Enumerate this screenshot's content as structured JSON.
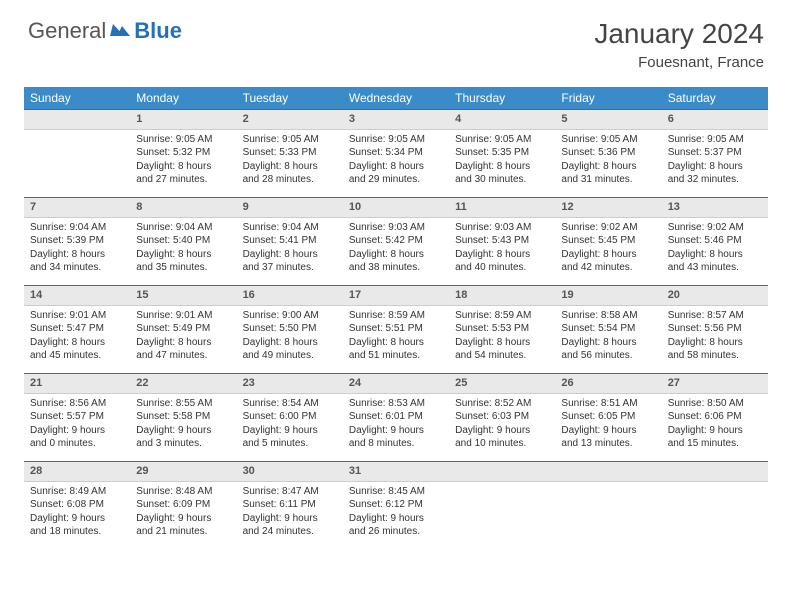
{
  "logo": {
    "general": "General",
    "blue": "Blue"
  },
  "title": "January 2024",
  "location": "Fouesnant, France",
  "colors": {
    "header_bg": "#3b8bc9",
    "header_text": "#ffffff",
    "daynum_bg": "#e9e9e9",
    "daynum_border_top": "#2571b8",
    "text": "#333333",
    "logo_blue": "#2571b8"
  },
  "dayHeaders": [
    "Sunday",
    "Monday",
    "Tuesday",
    "Wednesday",
    "Thursday",
    "Friday",
    "Saturday"
  ],
  "weeks": [
    [
      {
        "n": "",
        "lines": [
          "",
          "",
          "",
          ""
        ]
      },
      {
        "n": "1",
        "lines": [
          "Sunrise: 9:05 AM",
          "Sunset: 5:32 PM",
          "Daylight: 8 hours",
          "and 27 minutes."
        ]
      },
      {
        "n": "2",
        "lines": [
          "Sunrise: 9:05 AM",
          "Sunset: 5:33 PM",
          "Daylight: 8 hours",
          "and 28 minutes."
        ]
      },
      {
        "n": "3",
        "lines": [
          "Sunrise: 9:05 AM",
          "Sunset: 5:34 PM",
          "Daylight: 8 hours",
          "and 29 minutes."
        ]
      },
      {
        "n": "4",
        "lines": [
          "Sunrise: 9:05 AM",
          "Sunset: 5:35 PM",
          "Daylight: 8 hours",
          "and 30 minutes."
        ]
      },
      {
        "n": "5",
        "lines": [
          "Sunrise: 9:05 AM",
          "Sunset: 5:36 PM",
          "Daylight: 8 hours",
          "and 31 minutes."
        ]
      },
      {
        "n": "6",
        "lines": [
          "Sunrise: 9:05 AM",
          "Sunset: 5:37 PM",
          "Daylight: 8 hours",
          "and 32 minutes."
        ]
      }
    ],
    [
      {
        "n": "7",
        "lines": [
          "Sunrise: 9:04 AM",
          "Sunset: 5:39 PM",
          "Daylight: 8 hours",
          "and 34 minutes."
        ]
      },
      {
        "n": "8",
        "lines": [
          "Sunrise: 9:04 AM",
          "Sunset: 5:40 PM",
          "Daylight: 8 hours",
          "and 35 minutes."
        ]
      },
      {
        "n": "9",
        "lines": [
          "Sunrise: 9:04 AM",
          "Sunset: 5:41 PM",
          "Daylight: 8 hours",
          "and 37 minutes."
        ]
      },
      {
        "n": "10",
        "lines": [
          "Sunrise: 9:03 AM",
          "Sunset: 5:42 PM",
          "Daylight: 8 hours",
          "and 38 minutes."
        ]
      },
      {
        "n": "11",
        "lines": [
          "Sunrise: 9:03 AM",
          "Sunset: 5:43 PM",
          "Daylight: 8 hours",
          "and 40 minutes."
        ]
      },
      {
        "n": "12",
        "lines": [
          "Sunrise: 9:02 AM",
          "Sunset: 5:45 PM",
          "Daylight: 8 hours",
          "and 42 minutes."
        ]
      },
      {
        "n": "13",
        "lines": [
          "Sunrise: 9:02 AM",
          "Sunset: 5:46 PM",
          "Daylight: 8 hours",
          "and 43 minutes."
        ]
      }
    ],
    [
      {
        "n": "14",
        "lines": [
          "Sunrise: 9:01 AM",
          "Sunset: 5:47 PM",
          "Daylight: 8 hours",
          "and 45 minutes."
        ]
      },
      {
        "n": "15",
        "lines": [
          "Sunrise: 9:01 AM",
          "Sunset: 5:49 PM",
          "Daylight: 8 hours",
          "and 47 minutes."
        ]
      },
      {
        "n": "16",
        "lines": [
          "Sunrise: 9:00 AM",
          "Sunset: 5:50 PM",
          "Daylight: 8 hours",
          "and 49 minutes."
        ]
      },
      {
        "n": "17",
        "lines": [
          "Sunrise: 8:59 AM",
          "Sunset: 5:51 PM",
          "Daylight: 8 hours",
          "and 51 minutes."
        ]
      },
      {
        "n": "18",
        "lines": [
          "Sunrise: 8:59 AM",
          "Sunset: 5:53 PM",
          "Daylight: 8 hours",
          "and 54 minutes."
        ]
      },
      {
        "n": "19",
        "lines": [
          "Sunrise: 8:58 AM",
          "Sunset: 5:54 PM",
          "Daylight: 8 hours",
          "and 56 minutes."
        ]
      },
      {
        "n": "20",
        "lines": [
          "Sunrise: 8:57 AM",
          "Sunset: 5:56 PM",
          "Daylight: 8 hours",
          "and 58 minutes."
        ]
      }
    ],
    [
      {
        "n": "21",
        "lines": [
          "Sunrise: 8:56 AM",
          "Sunset: 5:57 PM",
          "Daylight: 9 hours",
          "and 0 minutes."
        ]
      },
      {
        "n": "22",
        "lines": [
          "Sunrise: 8:55 AM",
          "Sunset: 5:58 PM",
          "Daylight: 9 hours",
          "and 3 minutes."
        ]
      },
      {
        "n": "23",
        "lines": [
          "Sunrise: 8:54 AM",
          "Sunset: 6:00 PM",
          "Daylight: 9 hours",
          "and 5 minutes."
        ]
      },
      {
        "n": "24",
        "lines": [
          "Sunrise: 8:53 AM",
          "Sunset: 6:01 PM",
          "Daylight: 9 hours",
          "and 8 minutes."
        ]
      },
      {
        "n": "25",
        "lines": [
          "Sunrise: 8:52 AM",
          "Sunset: 6:03 PM",
          "Daylight: 9 hours",
          "and 10 minutes."
        ]
      },
      {
        "n": "26",
        "lines": [
          "Sunrise: 8:51 AM",
          "Sunset: 6:05 PM",
          "Daylight: 9 hours",
          "and 13 minutes."
        ]
      },
      {
        "n": "27",
        "lines": [
          "Sunrise: 8:50 AM",
          "Sunset: 6:06 PM",
          "Daylight: 9 hours",
          "and 15 minutes."
        ]
      }
    ],
    [
      {
        "n": "28",
        "lines": [
          "Sunrise: 8:49 AM",
          "Sunset: 6:08 PM",
          "Daylight: 9 hours",
          "and 18 minutes."
        ]
      },
      {
        "n": "29",
        "lines": [
          "Sunrise: 8:48 AM",
          "Sunset: 6:09 PM",
          "Daylight: 9 hours",
          "and 21 minutes."
        ]
      },
      {
        "n": "30",
        "lines": [
          "Sunrise: 8:47 AM",
          "Sunset: 6:11 PM",
          "Daylight: 9 hours",
          "and 24 minutes."
        ]
      },
      {
        "n": "31",
        "lines": [
          "Sunrise: 8:45 AM",
          "Sunset: 6:12 PM",
          "Daylight: 9 hours",
          "and 26 minutes."
        ]
      },
      {
        "n": "",
        "lines": [
          "",
          "",
          "",
          ""
        ]
      },
      {
        "n": "",
        "lines": [
          "",
          "",
          "",
          ""
        ]
      },
      {
        "n": "",
        "lines": [
          "",
          "",
          "",
          ""
        ]
      }
    ]
  ]
}
